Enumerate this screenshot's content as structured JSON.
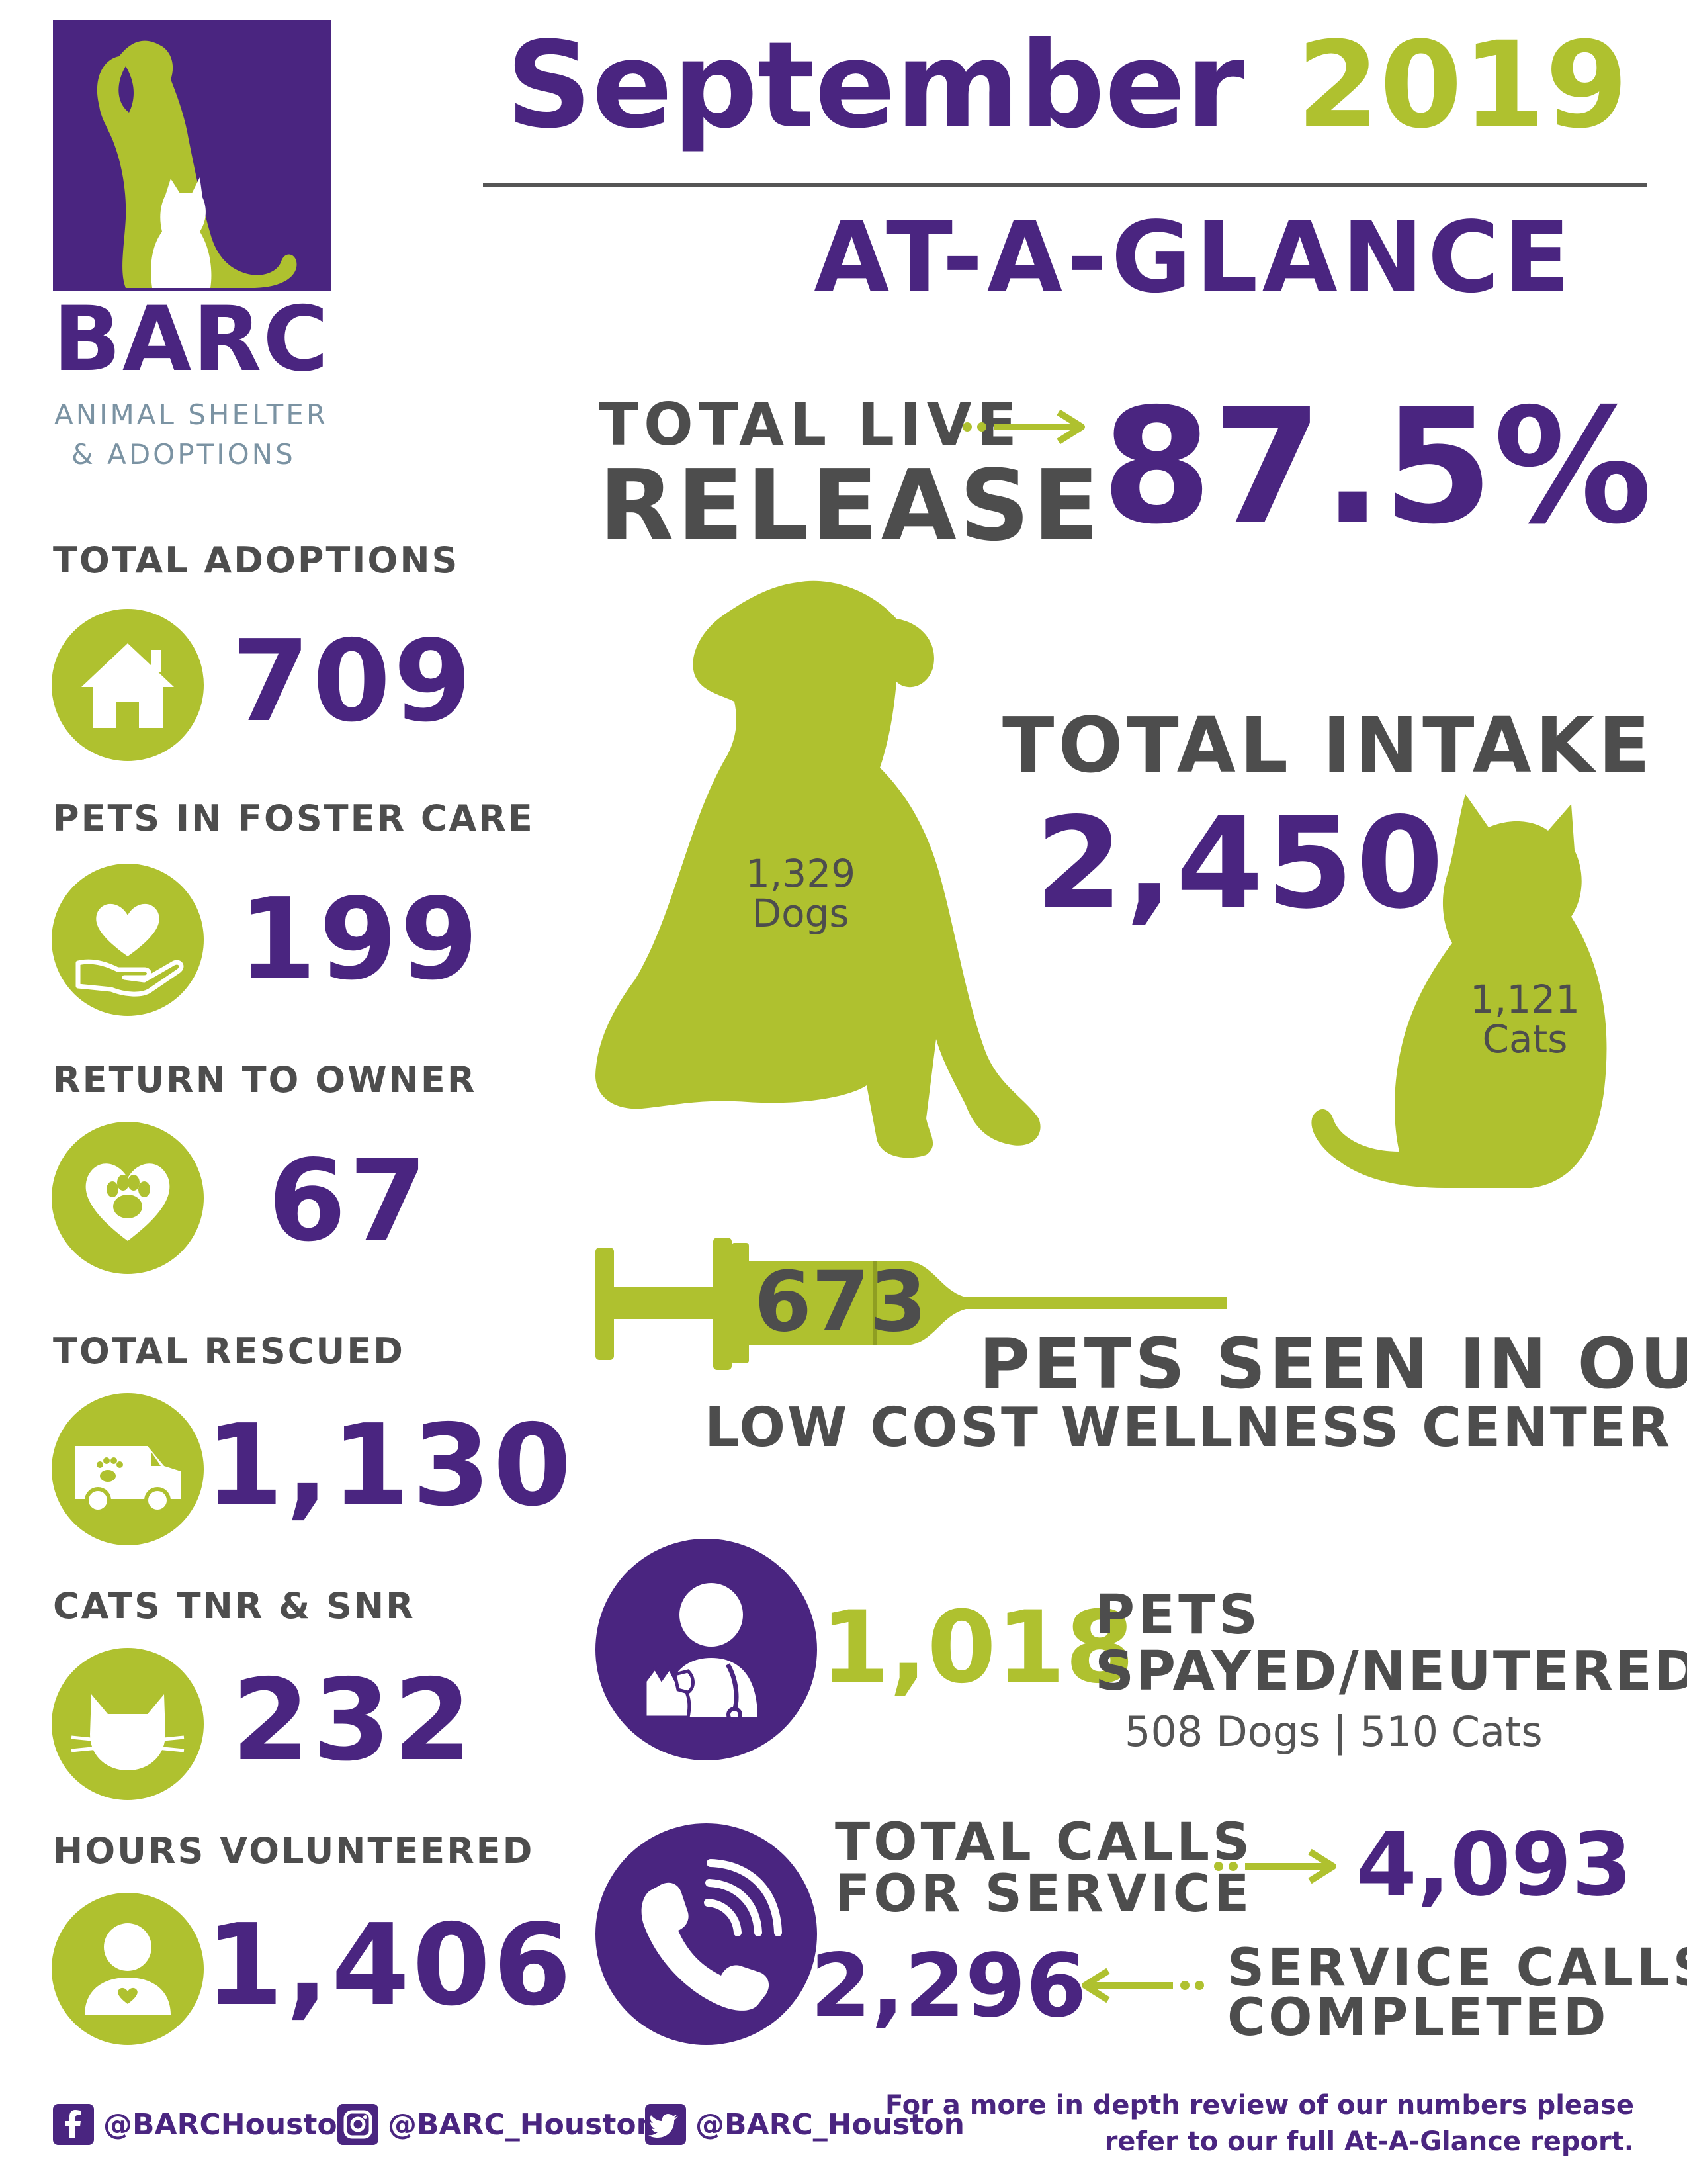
{
  "brand": {
    "name": "BARC",
    "subtitle_line1": "ANIMAL SHELTER",
    "subtitle_line2": "& ADOPTIONS"
  },
  "header": {
    "month": "September",
    "year": "2019",
    "subtitle": "AT-A-GLANCE"
  },
  "stats": [
    {
      "label": "TOTAL ADOPTIONS",
      "value": "709",
      "icon": "house-icon"
    },
    {
      "label": "PETS IN FOSTER CARE",
      "value": "199",
      "icon": "heart-hand-icon"
    },
    {
      "label": "RETURN TO OWNER",
      "value": "67",
      "icon": "paw-heart-icon"
    },
    {
      "label": "TOTAL RESCUED",
      "value": "1,130",
      "icon": "rescue-van-icon"
    },
    {
      "label": "CATS TNR & SNR",
      "value": "232",
      "icon": "cat-face-icon"
    },
    {
      "label": "HOURS VOLUNTEERED",
      "value": "1,406",
      "icon": "volunteer-icon"
    }
  ],
  "live_release": {
    "label_line1": "TOTAL LIVE",
    "label_line2": "RELEASE",
    "value": "87.5%"
  },
  "intake": {
    "label": "TOTAL INTAKE",
    "value": "2,450",
    "dogs_count": "1,329",
    "dogs_label": "Dogs",
    "cats_count": "1,121",
    "cats_label": "Cats"
  },
  "wellness": {
    "value": "673",
    "line1": "PETS SEEN IN OUR",
    "line2": "LOW COST WELLNESS CENTER"
  },
  "spay_neuter": {
    "value": "1,018",
    "line1": "PETS",
    "line2": "SPAYED/NEUTERED",
    "breakdown": "508 Dogs | 510 Cats"
  },
  "calls": {
    "total_label_line1": "TOTAL CALLS",
    "total_label_line2": "FOR SERVICE",
    "total_value": "4,093",
    "completed_value": "2,296",
    "completed_label_line1": "SERVICE CALLS",
    "completed_label_line2": "COMPLETED"
  },
  "footer": {
    "facebook": "@BARCHouston",
    "instagram": "@BARC_Houston",
    "twitter": "@BARC_Houston",
    "note_line1": "For a more in depth review of our numbers please",
    "note_line2": "refer to our full At-A-Glance report."
  },
  "colors": {
    "purple": "#4a2580",
    "green": "#afc12f",
    "gray": "#4d4d4d"
  }
}
